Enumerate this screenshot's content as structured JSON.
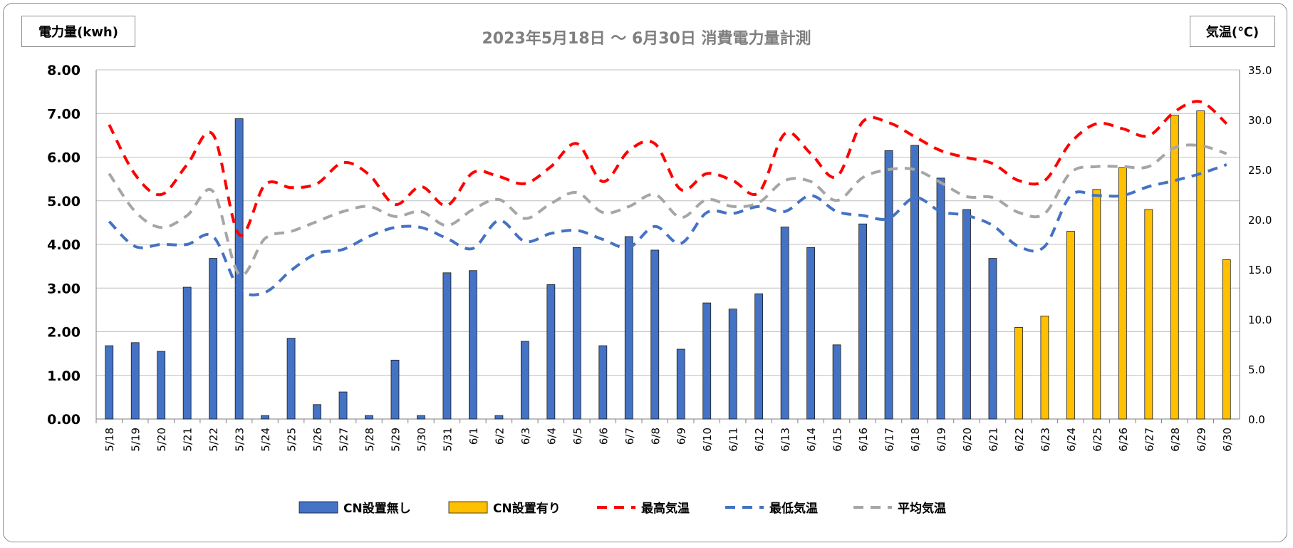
{
  "chart_data": {
    "type": "bar",
    "title": "2023年5月18日 ～ 6月30日 消費電力量計測",
    "ylabel": "電力量(kwh)",
    "y2label": "気温(℃)",
    "ylim": [
      0,
      8
    ],
    "y2lim": [
      0,
      35
    ],
    "yticks": [
      "0.00",
      "1.00",
      "2.00",
      "3.00",
      "4.00",
      "5.00",
      "6.00",
      "7.00",
      "8.00"
    ],
    "y2ticks": [
      "0.0",
      "5.0",
      "10.0",
      "15.0",
      "20.0",
      "25.0",
      "30.0",
      "35.0"
    ],
    "grid": true,
    "legend_position": "bottom",
    "categories": [
      "5/18",
      "5/19",
      "5/20",
      "5/21",
      "5/22",
      "5/23",
      "5/24",
      "5/25",
      "5/26",
      "5/27",
      "5/28",
      "5/29",
      "5/30",
      "5/31",
      "6/1",
      "6/2",
      "6/3",
      "6/4",
      "6/5",
      "6/6",
      "6/7",
      "6/8",
      "6/9",
      "6/10",
      "6/11",
      "6/12",
      "6/13",
      "6/14",
      "6/15",
      "6/16",
      "6/17",
      "6/18",
      "6/19",
      "6/20",
      "6/21",
      "6/22",
      "6/23",
      "6/24",
      "6/25",
      "6/26",
      "6/27",
      "6/28",
      "6/29",
      "6/30"
    ],
    "bar_series": [
      {
        "name": "CN設置無し",
        "color": "#4472c4",
        "axis": "left",
        "values": [
          1.68,
          1.75,
          1.55,
          3.02,
          3.68,
          6.88,
          0.08,
          1.85,
          0.33,
          0.62,
          0.08,
          1.35,
          0.08,
          3.35,
          3.4,
          0.08,
          1.78,
          3.08,
          3.93,
          1.68,
          4.18,
          3.87,
          1.6,
          2.66,
          2.52,
          2.87,
          4.4,
          3.93,
          1.7,
          4.47,
          6.15,
          6.27,
          5.52,
          4.8,
          3.68,
          null,
          null,
          null,
          null,
          null,
          null,
          null,
          null,
          null
        ]
      },
      {
        "name": "CN設置有り",
        "color": "#ffc000",
        "axis": "right_none",
        "values": [
          null,
          null,
          null,
          null,
          null,
          null,
          null,
          null,
          null,
          null,
          null,
          null,
          null,
          null,
          null,
          null,
          null,
          null,
          null,
          null,
          null,
          null,
          null,
          null,
          null,
          null,
          null,
          null,
          null,
          null,
          null,
          null,
          null,
          null,
          null,
          2.1,
          2.36,
          4.3,
          5.26,
          5.76,
          4.8,
          6.96,
          7.06,
          3.65
        ]
      }
    ],
    "line_series": [
      {
        "name": "最高気温",
        "color": "#ff0000",
        "axis": "right",
        "values": [
          29.5,
          24.5,
          22.5,
          25.5,
          28.5,
          18.5,
          23.5,
          23.2,
          23.6,
          25.7,
          24.5,
          21.5,
          23.3,
          21.4,
          24.7,
          24.3,
          23.6,
          25.3,
          27.6,
          23.8,
          26.9,
          27.6,
          23.0,
          24.6,
          23.9,
          22.7,
          28.6,
          26.6,
          24.3,
          29.8,
          29.7,
          28.3,
          26.9,
          26.2,
          25.6,
          23.9,
          23.9,
          27.7,
          29.6,
          29.1,
          28.4,
          30.8,
          31.8,
          29.6
        ]
      },
      {
        "name": "最低気温",
        "color": "#4472c4",
        "axis": "right",
        "values": [
          19.8,
          17.3,
          17.5,
          17.5,
          18.3,
          13.1,
          12.7,
          14.9,
          16.6,
          17.0,
          18.3,
          19.2,
          19.2,
          18.1,
          17.1,
          19.9,
          17.8,
          18.6,
          18.9,
          18.0,
          17.2,
          19.3,
          17.6,
          20.7,
          20.6,
          21.3,
          20.8,
          22.4,
          20.8,
          20.4,
          20.1,
          22.2,
          20.8,
          20.4,
          19.4,
          17.3,
          17.3,
          22.4,
          22.4,
          22.4,
          23.3,
          23.9,
          24.6,
          25.5
        ]
      },
      {
        "name": "平均気温",
        "color": "#a6a6a6",
        "axis": "right",
        "values": [
          24.6,
          20.8,
          19.2,
          20.4,
          22.8,
          14.5,
          18.1,
          18.8,
          19.8,
          20.8,
          21.3,
          20.3,
          20.8,
          19.4,
          21.0,
          22.0,
          20.1,
          21.6,
          22.7,
          20.7,
          21.3,
          22.5,
          20.2,
          22.0,
          21.3,
          21.7,
          23.9,
          23.8,
          21.9,
          24.2,
          25.0,
          25.0,
          23.7,
          22.3,
          22.2,
          20.7,
          20.6,
          24.7,
          25.3,
          25.3,
          25.3,
          27.2,
          27.4,
          26.6
        ]
      }
    ]
  }
}
